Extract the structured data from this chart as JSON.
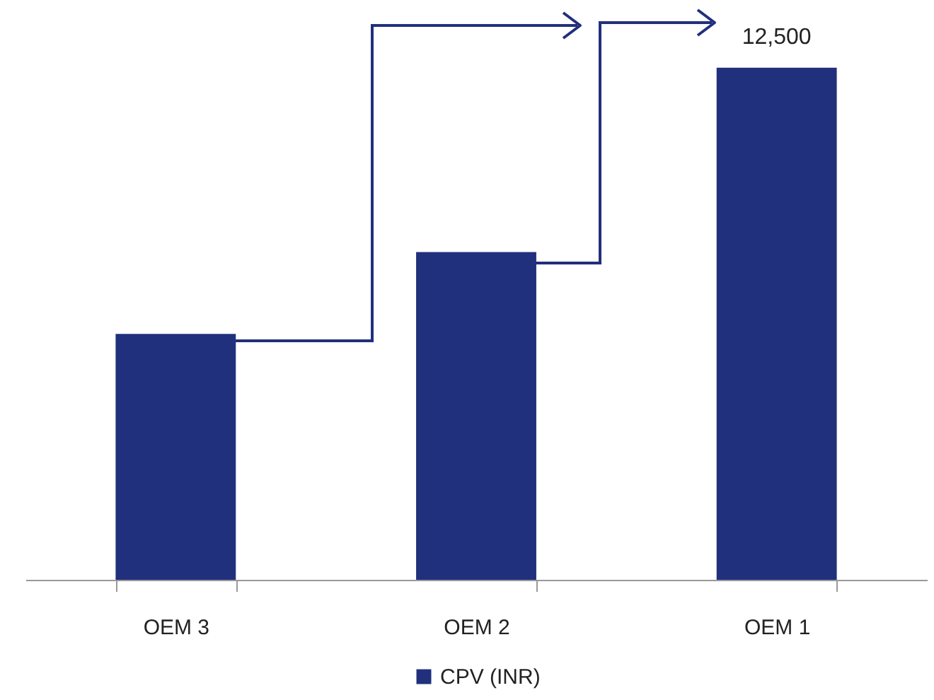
{
  "chart_data": {
    "type": "bar",
    "categories": [
      "OEM 3",
      "OEM 2",
      "OEM 1"
    ],
    "series": [
      {
        "name": "CPV (INR)",
        "color": "#21307c",
        "values": [
          6000,
          8000,
          12500
        ],
        "value_labels": [
          null,
          null,
          "12,500"
        ]
      }
    ],
    "legend": "bottom",
    "grid": false
  }
}
